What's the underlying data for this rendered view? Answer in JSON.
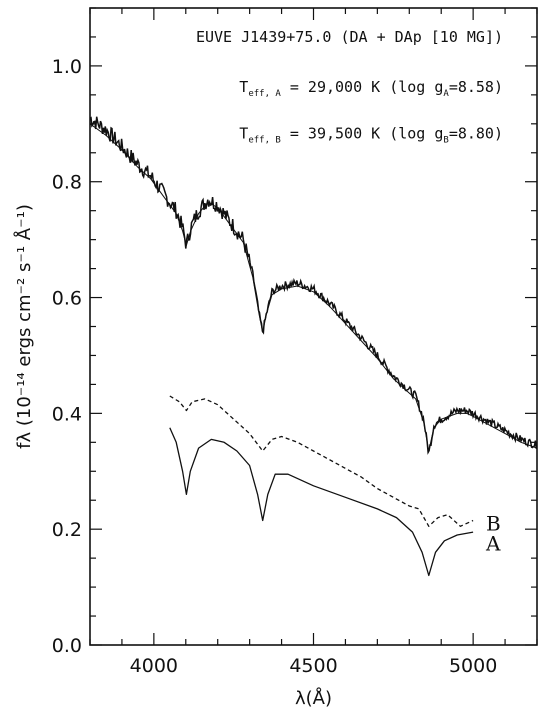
{
  "chart_data": {
    "type": "line",
    "title": "EUVE J1439+75.0 (DA + DAp [10 MG])",
    "annotations": [
      {
        "text_main": "T",
        "sub": "eff, A",
        "rest": " = 29,000 K (log g",
        "sub2": "A",
        "tail": "=8.58)"
      },
      {
        "text_main": "T",
        "sub": "eff, B",
        "rest": " = 39,500 K (log g",
        "sub2": "B",
        "tail": "=8.80)"
      }
    ],
    "xlabel": "λ(Å)",
    "ylabel": "fλ (10⁻¹⁴ ergs cm⁻² s⁻¹ Å⁻¹)",
    "xlim": [
      3800,
      5200
    ],
    "ylim": [
      0.0,
      1.1
    ],
    "x_ticks": [
      4000,
      4500,
      5000
    ],
    "x_tick_labels": [
      "4000",
      "4500",
      "5000"
    ],
    "y_ticks": [
      0.0,
      0.2,
      0.4,
      0.6,
      0.8,
      1.0
    ],
    "y_tick_labels": [
      "0.0",
      "0.2",
      "0.4",
      "0.6",
      "0.8",
      "1.0"
    ],
    "grid": false,
    "series": [
      {
        "style": "noisy-solid",
        "x": [
          3800,
          3850,
          3900,
          3950,
          3990,
          4030,
          4070,
          4090,
          4102,
          4115,
          4140,
          4170,
          4200,
          4240,
          4280,
          4310,
          4330,
          4341,
          4352,
          4370,
          4400,
          4450,
          4500,
          4550,
          4600,
          4650,
          4700,
          4750,
          4790,
          4820,
          4845,
          4861,
          4877,
          4900,
          4950,
          4980,
          5000,
          5050,
          5100,
          5150,
          5200
        ],
        "y": [
          0.91,
          0.89,
          0.86,
          0.83,
          0.81,
          0.78,
          0.75,
          0.72,
          0.69,
          0.72,
          0.75,
          0.77,
          0.76,
          0.73,
          0.7,
          0.64,
          0.57,
          0.54,
          0.57,
          0.61,
          0.62,
          0.625,
          0.615,
          0.59,
          0.56,
          0.53,
          0.5,
          0.465,
          0.445,
          0.43,
          0.39,
          0.33,
          0.38,
          0.39,
          0.405,
          0.405,
          0.4,
          0.385,
          0.37,
          0.355,
          0.345
        ]
      },
      {
        "style": "smooth",
        "x": [
          3800,
          3850,
          3900,
          3950,
          3990,
          4030,
          4070,
          4090,
          4102,
          4115,
          4140,
          4170,
          4200,
          4240,
          4280,
          4310,
          4330,
          4341,
          4352,
          4370,
          4400,
          4450,
          4500,
          4550,
          4600,
          4650,
          4700,
          4750,
          4790,
          4820,
          4845,
          4861,
          4877,
          4900,
          4950,
          4980,
          5000,
          5050,
          5100,
          5150,
          5200
        ],
        "y": [
          0.9,
          0.88,
          0.855,
          0.825,
          0.805,
          0.775,
          0.745,
          0.715,
          0.69,
          0.715,
          0.745,
          0.765,
          0.755,
          0.725,
          0.695,
          0.635,
          0.57,
          0.54,
          0.57,
          0.605,
          0.615,
          0.62,
          0.61,
          0.585,
          0.555,
          0.525,
          0.495,
          0.46,
          0.44,
          0.425,
          0.385,
          0.335,
          0.375,
          0.39,
          0.4,
          0.4,
          0.395,
          0.38,
          0.365,
          0.35,
          0.34
        ]
      },
      {
        "name": "B",
        "style": "dashed",
        "x": [
          4050,
          4080,
          4102,
          4120,
          4160,
          4200,
          4250,
          4300,
          4341,
          4370,
          4400,
          4450,
          4500,
          4550,
          4600,
          4650,
          4700,
          4750,
          4800,
          4830,
          4861,
          4890,
          4920,
          4960,
          5000
        ],
        "y": [
          0.43,
          0.42,
          0.405,
          0.42,
          0.425,
          0.415,
          0.39,
          0.365,
          0.335,
          0.355,
          0.36,
          0.35,
          0.335,
          0.32,
          0.305,
          0.29,
          0.27,
          0.255,
          0.24,
          0.235,
          0.205,
          0.22,
          0.225,
          0.205,
          0.215
        ]
      },
      {
        "name": "A",
        "style": "solid",
        "x": [
          4050,
          4070,
          4090,
          4102,
          4114,
          4140,
          4180,
          4220,
          4260,
          4300,
          4325,
          4341,
          4357,
          4380,
          4420,
          4500,
          4600,
          4700,
          4760,
          4810,
          4840,
          4861,
          4882,
          4910,
          4950,
          5000
        ],
        "y": [
          0.375,
          0.35,
          0.3,
          0.26,
          0.3,
          0.34,
          0.355,
          0.35,
          0.335,
          0.31,
          0.26,
          0.215,
          0.26,
          0.295,
          0.295,
          0.275,
          0.255,
          0.235,
          0.22,
          0.195,
          0.16,
          0.12,
          0.16,
          0.18,
          0.19,
          0.195
        ]
      }
    ]
  }
}
